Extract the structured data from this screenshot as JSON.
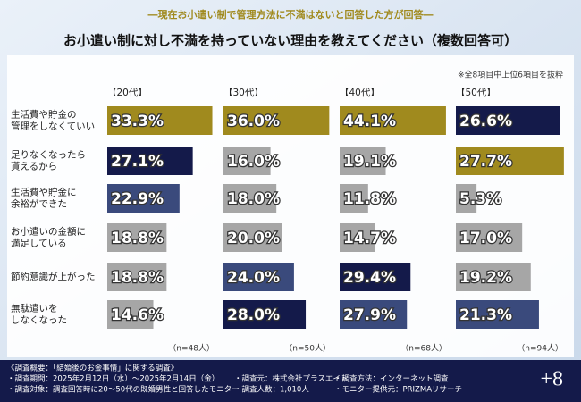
{
  "header": "―現在お小遣い制で管理方法に不満はないと回答した方が回答―",
  "chart_data": {
    "type": "bar",
    "orientation": "horizontal",
    "title": "お小遣い制に対し不満を持っていない理由を教えてください（複数回答可）",
    "note": "※全8項目中上位6項目を抜粋",
    "categories": [
      [
        "生活費や貯金の",
        "管理をしなくていい"
      ],
      [
        "足りなくなったら",
        "貰えるから"
      ],
      [
        "生活費や貯金に",
        "余裕ができた"
      ],
      [
        "お小遣いの金額に",
        "満足している"
      ],
      [
        "節約意識が上がった"
      ],
      [
        "無駄遣いを",
        "しなくなった"
      ]
    ],
    "series": [
      {
        "name": "【20代】",
        "n_label": "（n=48人）",
        "xlim": [
          0,
          34
        ],
        "values": [
          33.3,
          27.1,
          22.9,
          18.8,
          18.8,
          14.6
        ],
        "value_labels": [
          "33.3%",
          "27.1%",
          "22.9%",
          "18.8%",
          "18.8%",
          "14.6%"
        ],
        "colors": [
          "#a08a1e",
          "#141a4a",
          "#3a4a7c",
          "#a6a6a6",
          "#a6a6a6",
          "#a6a6a6"
        ]
      },
      {
        "name": "【30代】",
        "n_label": "（n=50人）",
        "xlim": [
          0,
          36.5
        ],
        "values": [
          36.0,
          16.0,
          18.0,
          20.0,
          24.0,
          28.0
        ],
        "value_labels": [
          "36.0%",
          "16.0%",
          "18.0%",
          "20.0%",
          "24.0%",
          "28.0%"
        ],
        "colors": [
          "#a08a1e",
          "#a6a6a6",
          "#a6a6a6",
          "#a6a6a6",
          "#3a4a7c",
          "#141a4a"
        ]
      },
      {
        "name": "【40代】",
        "n_label": "（n=68人）",
        "xlim": [
          0,
          44.5
        ],
        "values": [
          44.1,
          19.1,
          11.8,
          14.7,
          29.4,
          27.9
        ],
        "value_labels": [
          "44.1%",
          "19.1%",
          "11.8%",
          "14.7%",
          "29.4%",
          "27.9%"
        ],
        "colors": [
          "#a08a1e",
          "#a6a6a6",
          "#a6a6a6",
          "#a6a6a6",
          "#141a4a",
          "#3a4a7c"
        ]
      },
      {
        "name": "【50代】",
        "n_label": "（n=94人）",
        "xlim": [
          0,
          27.5
        ],
        "values": [
          26.6,
          27.7,
          5.3,
          17.0,
          19.2,
          21.3
        ],
        "value_labels": [
          "26.6%",
          "27.7%",
          "5.3%",
          "17.0%",
          "19.2%",
          "21.3%"
        ],
        "colors": [
          "#141a4a",
          "#a08a1e",
          "#a6a6a6",
          "#a6a6a6",
          "#a6a6a6",
          "#3a4a7c"
        ]
      }
    ]
  },
  "footer": {
    "lines": [
      [
        "《調査概要：「結婚後のお金事情」に関する調査》"
      ],
      [
        "・調査期間：2025年2月12日（水）～2025年2月14日（金）",
        "・調査元：株式会社プラスエイト",
        "・調査方法：インターネット調査"
      ],
      [
        "・調査対象：調査回答時に20〜50代の既婚男性と回答したモニター",
        "・調査人数：1,010人",
        "・モニター提供元：PRIZMAリサーチ"
      ]
    ],
    "logo": "+8"
  }
}
